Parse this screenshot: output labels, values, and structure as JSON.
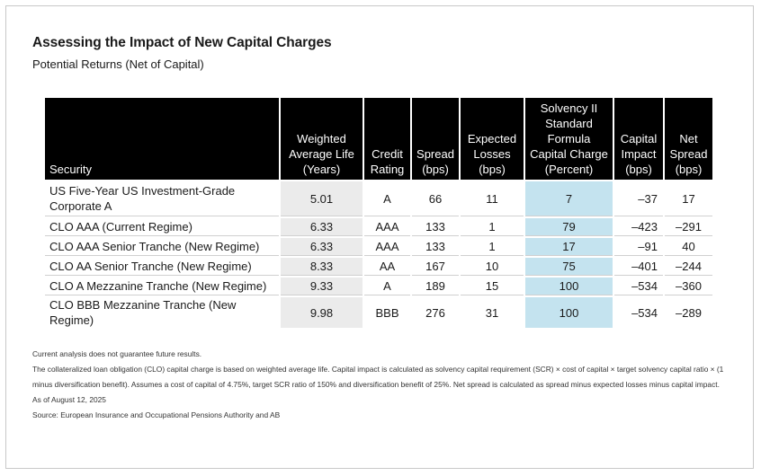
{
  "title": "Assessing the Impact of New Capital Charges",
  "subtitle": "Potential Returns (Net of Capital)",
  "table": {
    "headers": {
      "security": "Security",
      "wal": [
        "Weighted",
        "Average Life",
        "(Years)"
      ],
      "rating": [
        "Credit",
        "Rating"
      ],
      "spread": [
        "Spread",
        "(bps)"
      ],
      "losses": [
        "Expected",
        "Losses",
        "(bps)"
      ],
      "scr": [
        "Solvency II",
        "Standard",
        "Formula",
        "Capital Charge",
        "(Percent)"
      ],
      "impact": [
        "Capital",
        "Impact",
        "(bps)"
      ],
      "net": [
        "Net",
        "Spread",
        "(bps)"
      ]
    },
    "rows": [
      {
        "security": "US Five-Year US Investment-Grade Corporate A",
        "security_lines": [
          "US Five-Year US Investment-Grade",
          "Corporate A"
        ],
        "wal": "5.01",
        "rating": "A",
        "spread": "66",
        "losses": "11",
        "scr": "7",
        "impact": "–37",
        "net": "17"
      },
      {
        "security": "CLO AAA (Current Regime)",
        "wal": "6.33",
        "rating": "AAA",
        "spread": "133",
        "losses": "1",
        "scr": "79",
        "impact": "–423",
        "net": "–291"
      },
      {
        "security": "CLO AAA Senior Tranche (New Regime)",
        "wal": "6.33",
        "rating": "AAA",
        "spread": "133",
        "losses": "1",
        "scr": "17",
        "impact": "–91",
        "net": "40"
      },
      {
        "security": "CLO AA Senior Tranche (New Regime)",
        "wal": "8.33",
        "rating": "AA",
        "spread": "167",
        "losses": "10",
        "scr": "75",
        "impact": "–401",
        "net": "–244"
      },
      {
        "security": "CLO A Mezzanine Tranche (New Regime)",
        "wal": "9.33",
        "rating": "A",
        "spread": "189",
        "losses": "15",
        "scr": "100",
        "impact": "–534",
        "net": "–360"
      },
      {
        "security": "CLO BBB Mezzanine Tranche (New Regime)",
        "wal": "9.98",
        "rating": "BBB",
        "spread": "276",
        "losses": "31",
        "scr": "100",
        "impact": "–534",
        "net": "–289"
      }
    ]
  },
  "notes": {
    "disclaimer": "Current analysis does not guarantee future results.",
    "methodology": "The collateralized loan obligation (CLO) capital charge is based on weighted average life. Capital impact is calculated as solvency capital requirement (SCR) × cost of capital × target solvency capital ratio × (1 minus diversification benefit). Assumes a cost of capital of 4.75%, target SCR ratio of 150% and diversification benefit of 25%. Net spread is calculated as spread minus expected losses minus capital impact.",
    "as_of": "As of August 12, 2025",
    "source": "Source: European Insurance and Occupational Pensions Authority and AB"
  },
  "colors": {
    "header_bg": "#000000",
    "wal_column_bg": "#ebebeb",
    "scr_column_bg": "#c4e3ef",
    "frame_border": "#c8c8c8"
  }
}
